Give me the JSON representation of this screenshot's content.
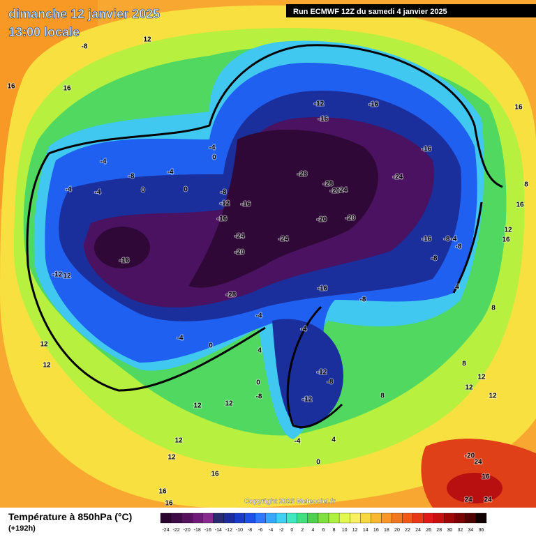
{
  "header": {
    "title": "dimanche 12 janvier 2025",
    "subtitle": "13:00 locale",
    "run": "Run ECMWF 12Z du samedi 4 janvier 2025"
  },
  "map": {
    "labels": [
      -8,
      12,
      16,
      16,
      -12,
      -16,
      -16,
      16,
      -4,
      0,
      -4,
      -16,
      -8,
      -4,
      -28,
      -24,
      -4,
      -4,
      0,
      0,
      -28,
      -20,
      24,
      -8,
      8,
      -12,
      -16,
      16,
      -16,
      -20,
      -20,
      12,
      16,
      -24,
      -24,
      -16,
      -8,
      -4,
      -8,
      -20,
      -16,
      -8,
      -12,
      12,
      -16,
      4,
      -28,
      -8,
      8,
      -4,
      -4,
      -4,
      0,
      12,
      4,
      8,
      12,
      -12,
      -8,
      0,
      12,
      12,
      12,
      -8,
      -12,
      8,
      12,
      12,
      12,
      -4,
      4,
      12,
      -20,
      24,
      0,
      16,
      16,
      16,
      24,
      16,
      24
    ]
  },
  "footer": {
    "variable": "Température à 850hPa (°C)",
    "lead": "(+192h)",
    "copyright": "Copyright 2025 Meteociel.fr"
  },
  "legend": {
    "values": [
      -24,
      -22,
      -20,
      -18,
      -16,
      -14,
      -12,
      -10,
      -8,
      -6,
      -4,
      -2,
      0,
      2,
      4,
      6,
      8,
      10,
      12,
      14,
      16,
      18,
      20,
      22,
      24,
      26,
      28,
      30,
      32,
      34,
      36
    ],
    "colors": [
      "#2a0530",
      "#3c0a45",
      "#55105e",
      "#6e1a78",
      "#862a8e",
      "#2a2a6e",
      "#1c2a9a",
      "#1a3ac8",
      "#2050e8",
      "#2f78ff",
      "#38a8ff",
      "#40d0f0",
      "#40e8c0",
      "#40e080",
      "#50d050",
      "#80e040",
      "#b0f040",
      "#e0f850",
      "#f8f060",
      "#f8d840",
      "#f8b830",
      "#f89828",
      "#f07820",
      "#f05818",
      "#e83818",
      "#e01818",
      "#c81010",
      "#a00808",
      "#780404",
      "#500202",
      "#100000"
    ]
  }
}
